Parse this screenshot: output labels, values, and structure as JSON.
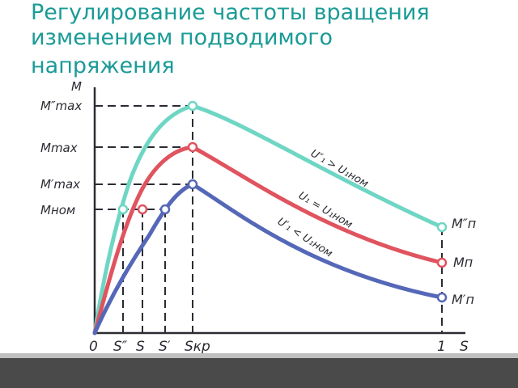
{
  "title": {
    "line1": "Регулирование частоты вращения",
    "line2": "изменением подводимого",
    "line3": "напряжения"
  },
  "diagram": {
    "axis_y_label": "M",
    "axis_x_label": "S",
    "y_labels": {
      "m_max_dd": "M″max",
      "m_max": "Mmax",
      "m_max_d": "M′max",
      "m_nom": "Mном"
    },
    "x_labels": {
      "zero": "0",
      "s_dd": "S″",
      "s": "S",
      "s_d": "S′",
      "s_kr": "Sкр",
      "one": "1",
      "s_axis": "S"
    },
    "curve_labels": {
      "upper": "U″₁ > U₁ном",
      "middle": "U₁ = U₁ном",
      "lower": "U′₁ < U₁ном"
    },
    "end_labels": {
      "upper": "M″п",
      "middle": "Mп",
      "lower": "M′п"
    },
    "colors": {
      "upper": "#6fd6c4",
      "middle": "#e0545f",
      "lower": "#5568b8",
      "axes": "#2b2b33",
      "title": "#1a9b96"
    }
  }
}
